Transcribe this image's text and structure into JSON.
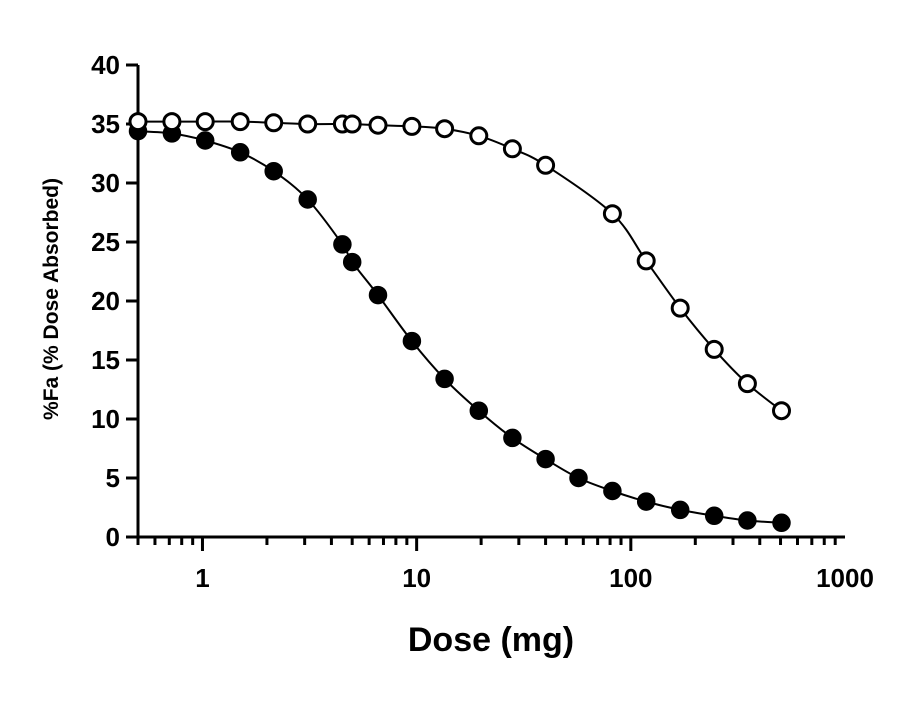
{
  "chart_data": {
    "type": "scatter",
    "xlabel": "Dose (mg)",
    "ylabel": "%Fa  (% Dose Absorbed)",
    "xscale": "log",
    "xlim": [
      0.5,
      1000
    ],
    "ylim": [
      0,
      40
    ],
    "x_ticks": [
      "1",
      "10",
      "100",
      "1000"
    ],
    "y_ticks": [
      "0",
      "5",
      "10",
      "15",
      "20",
      "25",
      "30",
      "35",
      "40"
    ],
    "grid": false,
    "legend": "none",
    "series": [
      {
        "marker": "filled-circle",
        "color": "#000000",
        "x": [
          0.5,
          0.72,
          1.03,
          1.5,
          2.15,
          3.1,
          4.5,
          5.0,
          6.6,
          9.5,
          13.5,
          19.5,
          28,
          40,
          57,
          82,
          118,
          170,
          245,
          350,
          505
        ],
        "y": [
          34.4,
          34.2,
          33.6,
          32.6,
          31.0,
          28.6,
          24.8,
          23.3,
          20.5,
          16.6,
          13.4,
          10.7,
          8.4,
          6.6,
          5.0,
          3.9,
          3.0,
          2.3,
          1.8,
          1.4,
          1.2
        ]
      },
      {
        "marker": "open-circle",
        "color": "#000000",
        "x": [
          0.5,
          0.72,
          1.03,
          1.5,
          2.15,
          3.1,
          4.5,
          5.0,
          6.6,
          9.5,
          13.5,
          19.5,
          28,
          40,
          82,
          118,
          170,
          245,
          350,
          505
        ],
        "y": [
          35.2,
          35.2,
          35.2,
          35.2,
          35.1,
          35.0,
          35.0,
          35.0,
          34.9,
          34.8,
          34.6,
          34.0,
          32.9,
          31.5,
          27.4,
          23.4,
          19.4,
          15.9,
          13.0,
          10.7
        ]
      }
    ]
  }
}
